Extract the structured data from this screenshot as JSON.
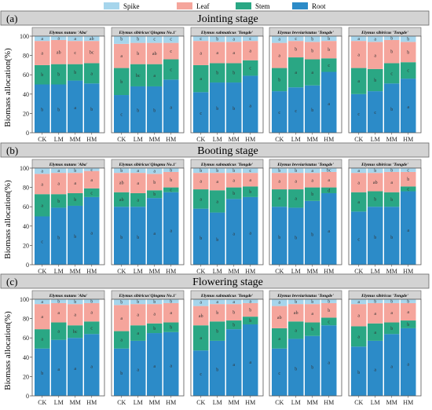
{
  "chart_data": {
    "type": "bar",
    "stacked": true,
    "ylabel": "Biomass allocation(%)",
    "ylim": [
      0,
      100
    ],
    "yticks": [
      0,
      20,
      40,
      60,
      80,
      100
    ],
    "categories": [
      "CK",
      "LM",
      "MM",
      "HM"
    ],
    "legend": {
      "placement": "top-center",
      "entries": [
        {
          "name": "Spike",
          "color": "#a6d5ec"
        },
        {
          "name": "Leaf",
          "color": "#f5a59c"
        },
        {
          "name": "Stem",
          "color": "#2aa784"
        },
        {
          "name": "Root",
          "color": "#2c8bc8"
        }
      ]
    },
    "stages": [
      {
        "label": "(a)",
        "title": "Jointing stage",
        "species": [
          {
            "name": "Elymus nutans 'Aba'",
            "root": [
              50,
              50,
              54,
              51
            ],
            "stem": [
              20,
              21,
              17,
              21
            ],
            "leaf": [
              25,
              25,
              24,
              23
            ],
            "spike": [
              5,
              4,
              5,
              5
            ],
            "root_sig": [
              "b",
              "b",
              "a",
              "b"
            ],
            "stem_sig": [
              "b",
              "b",
              "b",
              "a"
            ],
            "leaf_sig": [
              "a",
              "ab",
              "c",
              "bc"
            ],
            "spike_sig": [
              "a",
              "a",
              "a",
              "ab"
            ]
          },
          {
            "name": "Elymus sibiricus'Qingmu No.1'",
            "root": [
              39,
              48,
              48,
              55
            ],
            "stem": [
              28,
              23,
              23,
              21
            ],
            "leaf": [
              25,
              22,
              22,
              17
            ],
            "spike": [
              8,
              7,
              7,
              7
            ],
            "root_sig": [
              "c",
              "b",
              "b",
              "a"
            ],
            "stem_sig": [
              "b",
              "bc",
              "a",
              "c"
            ],
            "leaf_sig": [
              "a",
              "b",
              "ab",
              "c"
            ],
            "spike_sig": [
              "b",
              "b",
              "c",
              "c"
            ]
          },
          {
            "name": "Elymus  submaticus 'Tongde'",
            "root": [
              42,
              52,
              52,
              59
            ],
            "stem": [
              28,
              20,
              20,
              16
            ],
            "leaf": [
              25,
              22,
              22,
              20
            ],
            "spike": [
              5,
              6,
              6,
              5
            ],
            "root_sig": [
              "c",
              "b",
              "b",
              "a"
            ],
            "stem_sig": [
              "a",
              "b",
              "b",
              "c"
            ],
            "leaf_sig": [
              "a",
              "a",
              "a",
              "a"
            ],
            "spike_sig": [
              "c",
              "b",
              "a",
              "c"
            ]
          },
          {
            "name": "Elymus breviaristatus 'Tongde'",
            "root": [
              43,
              47,
              49,
              63
            ],
            "stem": [
              24,
              31,
              27,
              14
            ],
            "leaf": [
              26,
              17,
              18,
              18
            ],
            "spike": [
              7,
              5,
              6,
              5
            ],
            "root_sig": [
              "c",
              "c",
              "b",
              "a"
            ],
            "stem_sig": [
              "b",
              "a",
              "a",
              "c"
            ],
            "leaf_sig": [
              "a",
              "b",
              "b",
              "b"
            ],
            "spike_sig": [
              "a",
              "c",
              "b",
              "b"
            ]
          },
          {
            "name": "Elymus sibiricus 'Tongde'",
            "root": [
              40,
              43,
              51,
              56
            ],
            "stem": [
              27,
              23,
              21,
              17
            ],
            "leaf": [
              28,
              28,
              24,
              21
            ],
            "spike": [
              5,
              6,
              4,
              6
            ],
            "root_sig": [
              "c",
              "c",
              "b",
              "a"
            ],
            "stem_sig": [
              "a",
              "b",
              "c",
              "c"
            ],
            "leaf_sig": [
              "a",
              "a",
              "b",
              "b"
            ],
            "spike_sig": [
              "a",
              "a",
              "b",
              "b"
            ]
          }
        ]
      },
      {
        "label": "(b)",
        "title": "Booting stage",
        "species": [
          {
            "name": "Elymus nutans 'Aba'",
            "root": [
              50,
              59,
              61,
              70
            ],
            "stem": [
              23,
              14,
              13,
              9
            ],
            "leaf": [
              21,
              22,
              21,
              18
            ],
            "spike": [
              6,
              5,
              5,
              3
            ],
            "root_sig": [
              "c",
              "b",
              "b",
              "a"
            ],
            "stem_sig": [
              "a",
              "b",
              "b",
              "c"
            ],
            "leaf_sig": [
              "a",
              "a",
              "a",
              "a"
            ],
            "spike_sig": [
              "a",
              "a",
              "b",
              "c"
            ]
          },
          {
            "name": "Elymus sibiricus'Qingmu No.1'",
            "root": [
              60,
              60,
              69,
              75
            ],
            "stem": [
              15,
              14,
              8,
              5
            ],
            "leaf": [
              20,
              21,
              17,
              16
            ],
            "spike": [
              5,
              5,
              6,
              4
            ],
            "root_sig": [
              "b",
              "b",
              "a",
              "a"
            ],
            "stem_sig": [
              "ab",
              "a",
              "b",
              "c"
            ],
            "leaf_sig": [
              "ab",
              "a",
              "b",
              "b"
            ],
            "spike_sig": [
              "b",
              "a",
              "a",
              "b"
            ]
          },
          {
            "name": "Elymus  submaticus 'Tongde'",
            "root": [
              58,
              54,
              68,
              70
            ],
            "stem": [
              20,
              23,
              12,
              11
            ],
            "leaf": [
              17,
              18,
              15,
              14
            ],
            "spike": [
              5,
              5,
              5,
              5
            ],
            "root_sig": [
              "b",
              "b",
              "a",
              "a"
            ],
            "stem_sig": [
              "a",
              "a",
              "b",
              "b"
            ],
            "leaf_sig": [
              "a",
              "a",
              "a",
              "a"
            ],
            "spike_sig": [
              "b",
              "b",
              "b",
              "c"
            ]
          },
          {
            "name": "Elymus breviaristatus 'Tongde'",
            "root": [
              60,
              59,
              66,
              74
            ],
            "stem": [
              18,
              19,
              14,
              6
            ],
            "leaf": [
              17,
              17,
              15,
              16
            ],
            "spike": [
              5,
              5,
              5,
              4
            ],
            "root_sig": [
              "b",
              "b",
              "b",
              "a"
            ],
            "stem_sig": [
              "a",
              "a",
              "b",
              "d"
            ],
            "leaf_sig": [
              "a",
              "a",
              "a",
              "a"
            ],
            "spike_sig": [
              "b",
              "b",
              "a",
              "bc"
            ]
          },
          {
            "name": "Elymus sibiricus 'Tongde'",
            "root": [
              55,
              60,
              60,
              76
            ],
            "stem": [
              20,
              16,
              15,
              5
            ],
            "leaf": [
              20,
              19,
              21,
              15
            ],
            "spike": [
              5,
              5,
              4,
              4
            ],
            "root_sig": [
              "c",
              "b",
              "b",
              "a"
            ],
            "stem_sig": [
              "a",
              "b",
              "b",
              "c"
            ],
            "leaf_sig": [
              "a",
              "ab",
              "a",
              "b"
            ],
            "spike_sig": [
              "a",
              "b",
              "b",
              "c"
            ]
          }
        ]
      },
      {
        "label": "(c)",
        "title": "Flowering stage",
        "species": [
          {
            "name": "Elymus nutans 'Aba'",
            "root": [
              49,
              58,
              60,
              64
            ],
            "stem": [
              20,
              18,
              13,
              13
            ],
            "leaf": [
              26,
              20,
              22,
              19
            ],
            "spike": [
              5,
              4,
              5,
              4
            ],
            "root_sig": [
              "b",
              "a",
              "a",
              "a"
            ],
            "stem_sig": [
              "a",
              "a",
              "bc",
              "c"
            ],
            "leaf_sig": [
              "a",
              "a",
              "a",
              "a"
            ],
            "spike_sig": [
              "a",
              "b",
              "b",
              "b"
            ]
          },
          {
            "name": "Elymus sibiricus'Qingmu No.1'",
            "root": [
              49,
              57,
              65,
              66
            ],
            "stem": [
              18,
              16,
              10,
              10
            ],
            "leaf": [
              27,
              22,
              20,
              20
            ],
            "spike": [
              6,
              5,
              5,
              4
            ],
            "root_sig": [
              "b",
              "a",
              "a",
              "a"
            ],
            "stem_sig": [
              "a",
              "a",
              "b",
              "b"
            ],
            "leaf_sig": [
              "a",
              "a",
              "a",
              "a"
            ],
            "spike_sig": [
              "b",
              "b",
              "b",
              "b"
            ]
          },
          {
            "name": "Elymus  submaticus 'Tongde'",
            "root": [
              47,
              57,
              69,
              74
            ],
            "stem": [
              26,
              20,
              9,
              8
            ],
            "leaf": [
              20,
              18,
              17,
              14
            ],
            "spike": [
              7,
              5,
              5,
              4
            ],
            "root_sig": [
              "c",
              "b",
              "a",
              "a"
            ],
            "stem_sig": [
              "a",
              "b",
              "b",
              "b"
            ],
            "leaf_sig": [
              "ab",
              "b",
              "b",
              "b"
            ],
            "spike_sig": [
              "a",
              "a",
              "a",
              "a"
            ]
          },
          {
            "name": "Elymus breviaristatus 'Tongde'",
            "root": [
              49,
              59,
              62,
              73
            ],
            "stem": [
              21,
              18,
              14,
              8
            ],
            "leaf": [
              23,
              18,
              19,
              15
            ],
            "spike": [
              7,
              5,
              5,
              4
            ],
            "root_sig": [
              "c",
              "b",
              "b",
              "a"
            ],
            "stem_sig": [
              "a",
              "a",
              "b",
              "c"
            ],
            "leaf_sig": [
              "ab",
              "ab",
              "a",
              "b"
            ],
            "spike_sig": [
              "a",
              "b",
              "b",
              "b"
            ]
          },
          {
            "name": "Elymus sibiricus 'Tongde'",
            "root": [
              51,
              57,
              64,
              70
            ],
            "stem": [
              21,
              18,
              12,
              8
            ],
            "leaf": [
              23,
              21,
              20,
              18
            ],
            "spike": [
              5,
              4,
              4,
              4
            ],
            "root_sig": [
              "b",
              "a",
              "a",
              "a"
            ],
            "stem_sig": [
              "a",
              "a",
              "b",
              "b"
            ],
            "leaf_sig": [
              "a",
              "a",
              "a",
              "a"
            ],
            "spike_sig": [
              "a",
              "b",
              "b",
              "b"
            ]
          }
        ]
      }
    ]
  }
}
